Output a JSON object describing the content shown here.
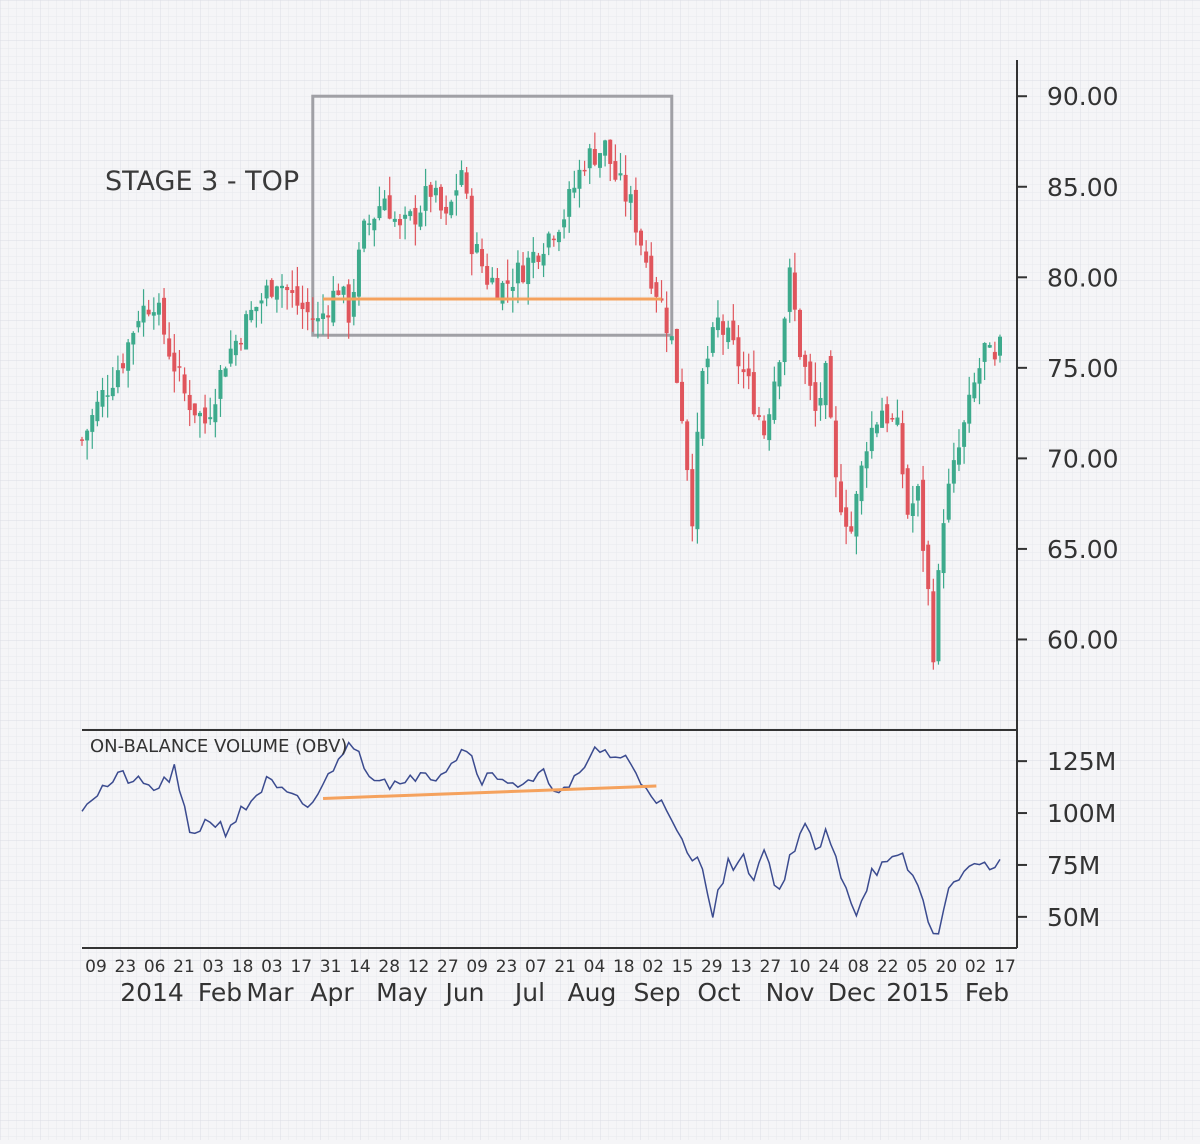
{
  "annotation": {
    "stage_label": "STAGE 3 - TOP"
  },
  "obv_title": "ON-BALANCE VOLUME (OBV)",
  "colors": {
    "up": "#3daa8c",
    "down": "#e0555c",
    "obv_line": "#3b4b8f",
    "support_line": "#f5a25d",
    "box": "#a0a0a5",
    "axis": "#333333",
    "grid": "#dfe0e6"
  },
  "chart_data": [
    {
      "type": "candlestick",
      "title": "",
      "ylim": [
        55,
        92
      ],
      "yticks": [
        "90.00",
        "85.00",
        "80.00",
        "75.00",
        "70.00",
        "65.00",
        "60.00"
      ],
      "ytick_values": [
        90,
        85,
        80,
        75,
        70,
        65,
        60
      ],
      "x_day_labels": [
        "09",
        "23",
        "06",
        "21",
        "03",
        "18",
        "03",
        "17",
        "31",
        "14",
        "28",
        "12",
        "27",
        "09",
        "23",
        "07",
        "21",
        "04",
        "18",
        "02",
        "15",
        "29",
        "13",
        "27",
        "10",
        "24",
        "08",
        "22",
        "05",
        "20",
        "02",
        "17"
      ],
      "x_month_labels": [
        "2014",
        "Feb",
        "Mar",
        "Apr",
        "May",
        "Jun",
        "Jul",
        "Aug",
        "Sep",
        "Oct",
        "Nov",
        "Dec",
        "2015",
        "Feb"
      ],
      "price_path": [
        [
          0,
          71.0
        ],
        [
          4,
          73.5
        ],
        [
          8,
          75.5
        ],
        [
          11,
          78.0
        ],
        [
          14,
          78.8
        ],
        [
          17,
          76.0
        ],
        [
          20,
          73.5
        ],
        [
          24,
          72.0
        ],
        [
          28,
          75.5
        ],
        [
          33,
          78.0
        ],
        [
          38,
          80.0
        ],
        [
          42,
          78.5
        ],
        [
          46,
          77.5
        ],
        [
          50,
          79.5
        ],
        [
          52,
          78.0
        ],
        [
          55,
          82.5
        ],
        [
          59,
          84.5
        ],
        [
          62,
          82.5
        ],
        [
          65,
          83.5
        ],
        [
          68,
          84.8
        ],
        [
          71,
          83.0
        ],
        [
          74,
          86.0
        ],
        [
          76,
          82.0
        ],
        [
          79,
          80.0
        ],
        [
          82,
          79.5
        ],
        [
          86,
          80.5
        ],
        [
          90,
          82.0
        ],
        [
          94,
          83.5
        ],
        [
          98,
          86.5
        ],
        [
          102,
          87.2
        ],
        [
          104,
          85.5
        ],
        [
          107,
          84.0
        ],
        [
          110,
          81.0
        ],
        [
          113,
          78.5
        ],
        [
          115,
          76.5
        ],
        [
          117,
          72.5
        ],
        [
          119,
          67.0
        ],
        [
          121,
          74.5
        ],
        [
          124,
          77.5
        ],
        [
          127,
          76.0
        ],
        [
          130,
          74.0
        ],
        [
          133,
          71.5
        ],
        [
          136,
          76.0
        ],
        [
          138,
          80.0
        ],
        [
          140,
          76.0
        ],
        [
          143,
          72.5
        ],
        [
          145,
          74.5
        ],
        [
          147,
          68.5
        ],
        [
          150,
          66.0
        ],
        [
          153,
          71.0
        ],
        [
          156,
          72.8
        ],
        [
          159,
          71.5
        ],
        [
          161,
          67.0
        ],
        [
          163,
          68.0
        ],
        [
          165,
          62.5
        ],
        [
          166,
          59.5
        ],
        [
          168,
          67.0
        ],
        [
          171,
          70.5
        ],
        [
          174,
          74.0
        ],
        [
          176,
          76.0
        ],
        [
          178,
          75.0
        ],
        [
          179,
          76.0
        ]
      ],
      "support_level": 78.8,
      "support_range_index": [
        47,
        113
      ],
      "top_box": {
        "x_index": [
          45,
          115
        ],
        "price": [
          76.8,
          90.0
        ]
      }
    },
    {
      "type": "line",
      "title": "ON-BALANCE VOLUME (OBV)",
      "ylim": [
        35,
        140
      ],
      "yticks": [
        "125M",
        "100M",
        "75M",
        "50M"
      ],
      "ytick_values": [
        125,
        100,
        75,
        50
      ],
      "obv_path": [
        [
          0,
          104
        ],
        [
          4,
          112
        ],
        [
          8,
          118
        ],
        [
          12,
          113
        ],
        [
          15,
          112
        ],
        [
          18,
          120
        ],
        [
          21,
          90
        ],
        [
          25,
          97
        ],
        [
          28,
          92
        ],
        [
          32,
          103
        ],
        [
          36,
          115
        ],
        [
          40,
          108
        ],
        [
          44,
          103
        ],
        [
          47,
          112
        ],
        [
          50,
          128
        ],
        [
          53,
          133
        ],
        [
          56,
          120
        ],
        [
          60,
          115
        ],
        [
          63,
          112
        ],
        [
          66,
          122
        ],
        [
          69,
          118
        ],
        [
          72,
          125
        ],
        [
          75,
          132
        ],
        [
          78,
          117
        ],
        [
          82,
          118
        ],
        [
          86,
          112
        ],
        [
          90,
          118
        ],
        [
          94,
          110
        ],
        [
          98,
          120
        ],
        [
          100,
          132
        ],
        [
          103,
          128
        ],
        [
          106,
          126
        ],
        [
          109,
          116
        ],
        [
          112,
          108
        ],
        [
          115,
          95
        ],
        [
          118,
          80
        ],
        [
          121,
          75
        ],
        [
          123,
          53
        ],
        [
          126,
          75
        ],
        [
          129,
          77
        ],
        [
          131,
          70
        ],
        [
          133,
          82
        ],
        [
          136,
          62
        ],
        [
          139,
          85
        ],
        [
          141,
          95
        ],
        [
          143,
          80
        ],
        [
          145,
          90
        ],
        [
          149,
          65
        ],
        [
          151,
          52
        ],
        [
          154,
          72
        ],
        [
          157,
          75
        ],
        [
          160,
          78
        ],
        [
          163,
          65
        ],
        [
          165,
          48
        ],
        [
          167,
          42
        ],
        [
          170,
          70
        ],
        [
          173,
          72
        ],
        [
          176,
          78
        ],
        [
          178,
          72
        ],
        [
          179,
          76
        ]
      ],
      "support_range_index": [
        47,
        112
      ],
      "support_values": [
        107,
        113
      ]
    }
  ]
}
